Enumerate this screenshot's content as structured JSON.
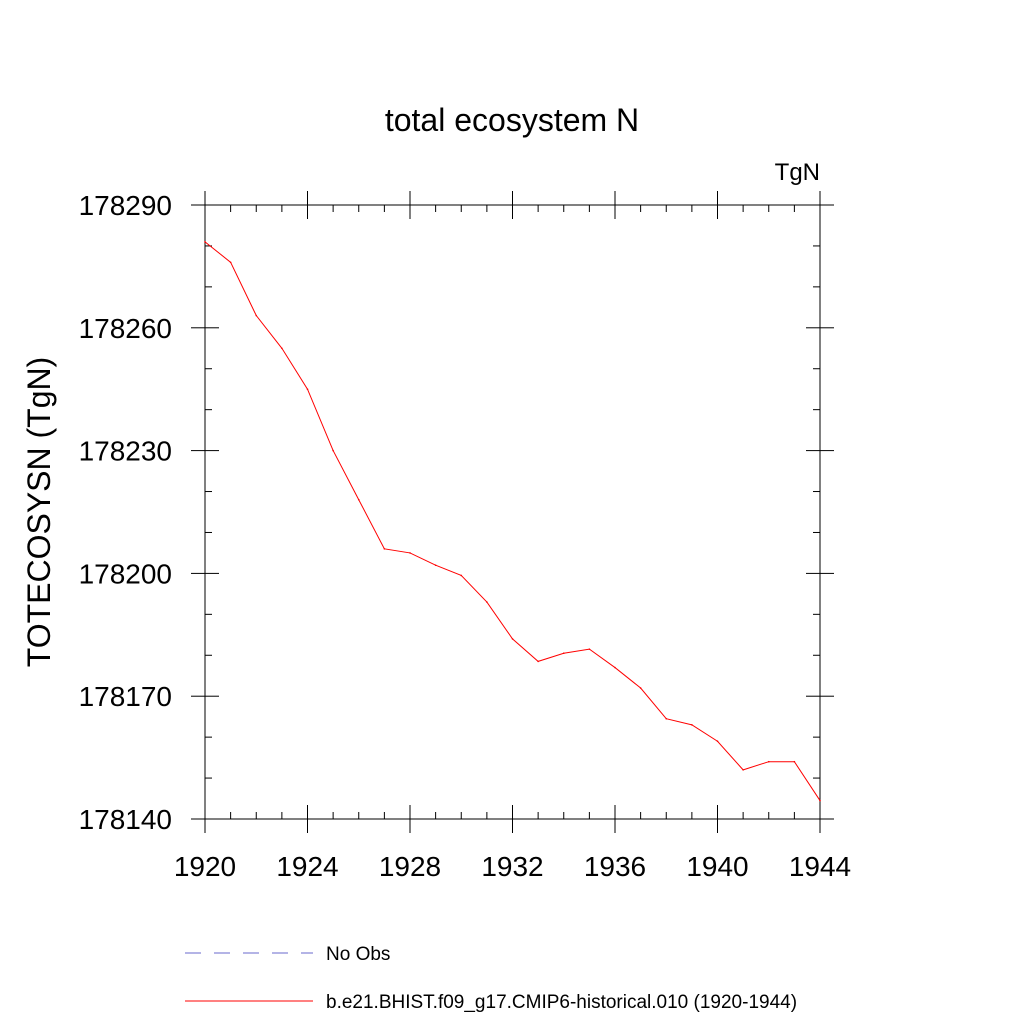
{
  "chart_data": {
    "type": "line",
    "title": "total ecosystem N",
    "units_label": "TgN",
    "xlabel": "",
    "ylabel": "TOTECOSYSN  (TgN)",
    "xlim": [
      1920,
      1944
    ],
    "ylim": [
      178140,
      178290
    ],
    "x_ticks": [
      1920,
      1924,
      1928,
      1932,
      1936,
      1940,
      1944
    ],
    "y_ticks": [
      178140,
      178170,
      178200,
      178230,
      178260,
      178290
    ],
    "grid": false,
    "legend_position": "bottom",
    "x": [
      1920,
      1921,
      1922,
      1923,
      1924,
      1925,
      1926,
      1927,
      1928,
      1929,
      1930,
      1931,
      1932,
      1933,
      1934,
      1935,
      1936,
      1937,
      1938,
      1939,
      1940,
      1941,
      1942,
      1943,
      1944
    ],
    "series": [
      {
        "name": "b.e21.BHIST.f09_g17.CMIP6-historical.010 (1920-1944)",
        "color": "#ff0000",
        "dash": "solid",
        "values": [
          178281,
          178276,
          178263,
          178255,
          178245,
          178230,
          178218,
          178206,
          178205,
          178202,
          178199.5,
          178193,
          178184,
          178178.5,
          178180.5,
          178181.5,
          178177,
          178172,
          178164.5,
          178163,
          178159,
          178152,
          178154,
          178154,
          178144.5
        ]
      }
    ],
    "legend": [
      {
        "label": "No Obs",
        "color": "#6a6acd",
        "dash": "dashed"
      },
      {
        "label": "b.e21.BHIST.f09_g17.CMIP6-historical.010 (1920-1944)",
        "color": "#ff0000",
        "dash": "solid"
      }
    ]
  }
}
